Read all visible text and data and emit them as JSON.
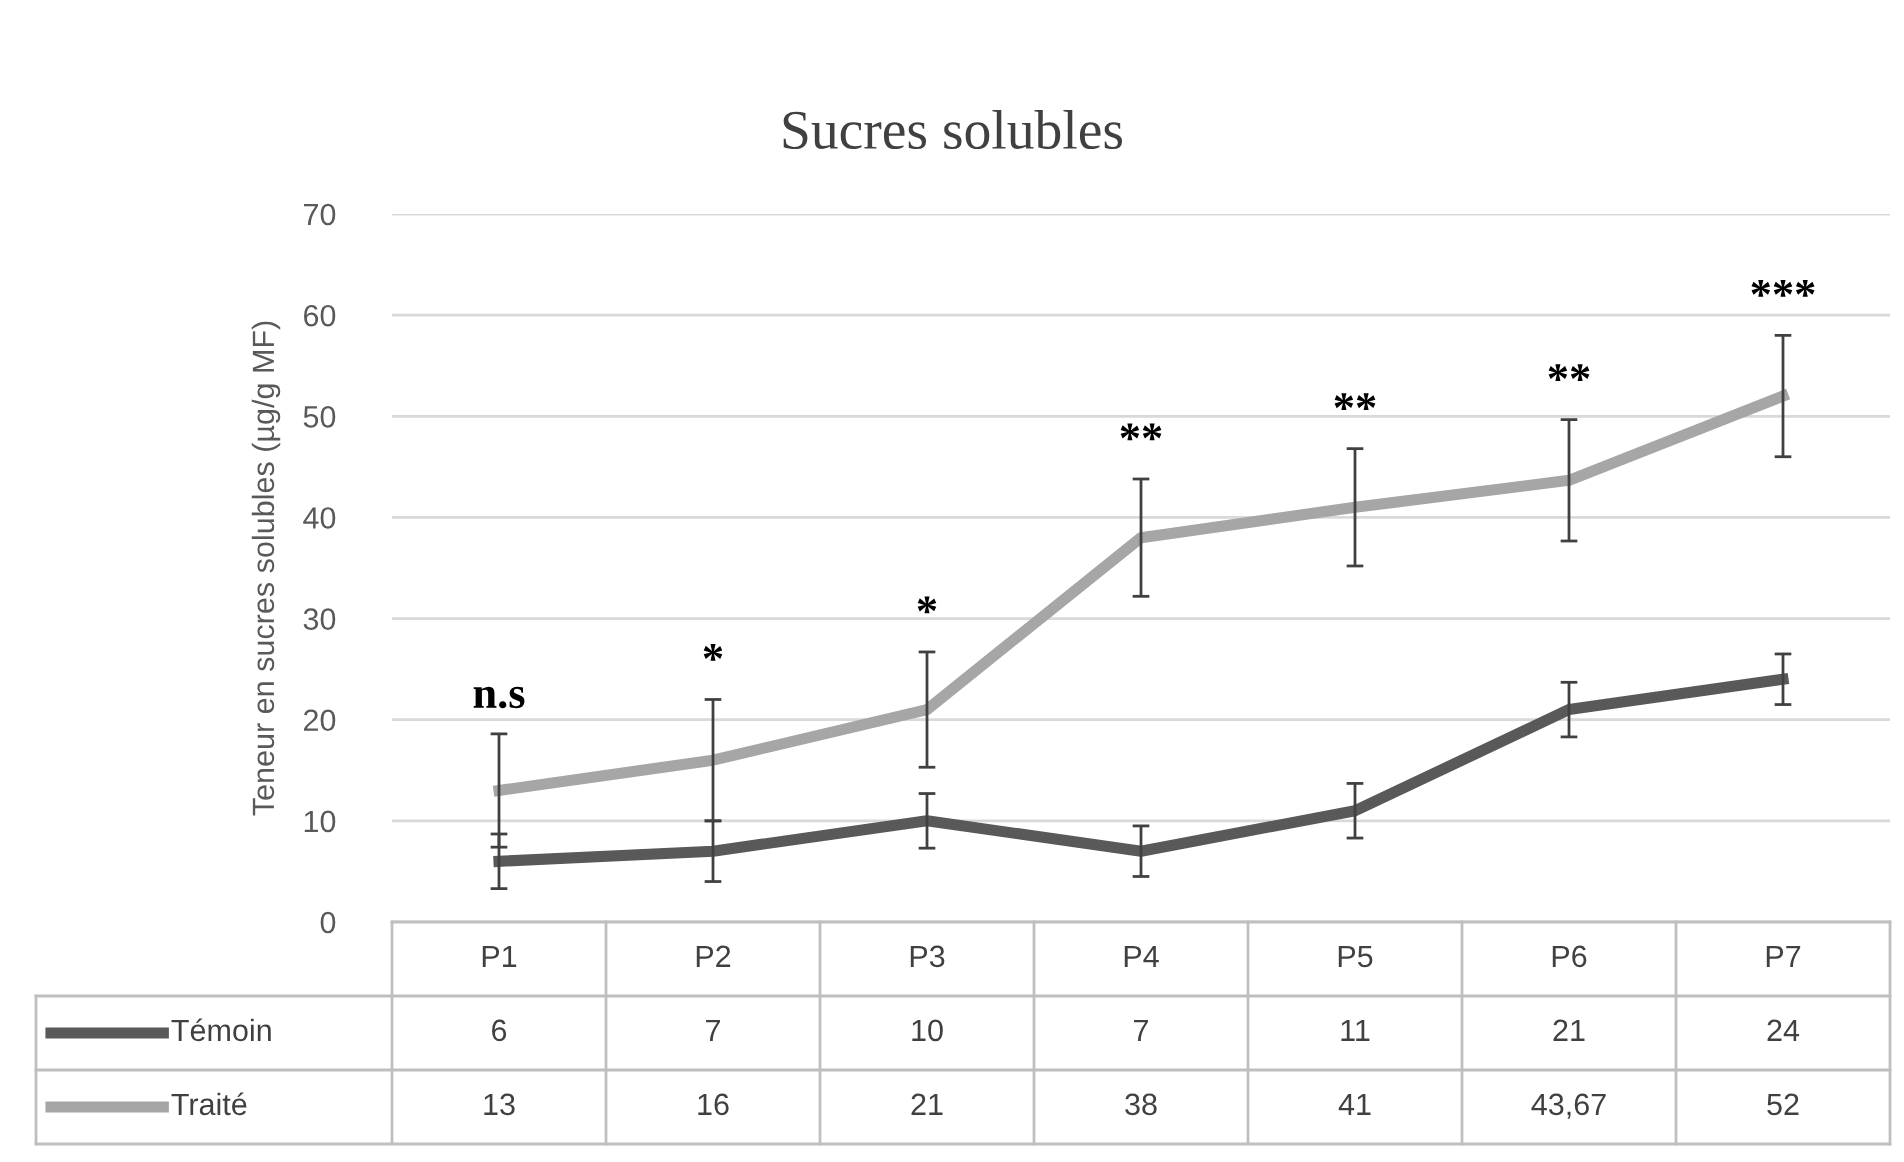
{
  "chart_data": {
    "type": "line",
    "title": "Sucres solubles",
    "ylabel": "Teneur en sucres solubles (µg/g MF)",
    "categories": [
      "P1",
      "P2",
      "P3",
      "P4",
      "P5",
      "P6",
      "P7"
    ],
    "series": [
      {
        "name": "Témoin",
        "color": "#595959",
        "values": [
          6,
          7,
          10,
          7,
          11,
          21,
          24
        ],
        "errors": [
          2.7,
          3,
          2.7,
          2.5,
          2.7,
          2.7,
          2.5
        ],
        "value_labels": [
          "6",
          "7",
          "10",
          "7",
          "11",
          "21",
          "24"
        ]
      },
      {
        "name": "Traité",
        "color": "#a6a6a6",
        "values": [
          13,
          16,
          21,
          38,
          41,
          43.67,
          52
        ],
        "errors": [
          5.6,
          6,
          5.7,
          5.8,
          5.8,
          6,
          6
        ],
        "value_labels": [
          "13",
          "16",
          "21",
          "38",
          "41",
          "43,67",
          "52"
        ]
      }
    ],
    "ylim": [
      0,
      70
    ],
    "yticks": [
      0,
      10,
      20,
      30,
      40,
      50,
      60,
      70
    ],
    "grid": "y",
    "legend": "bottom",
    "marker": "none",
    "line_style": "solid",
    "annotations": [
      "n.s",
      "*",
      "*",
      "**",
      "**",
      "**",
      "***"
    ]
  }
}
